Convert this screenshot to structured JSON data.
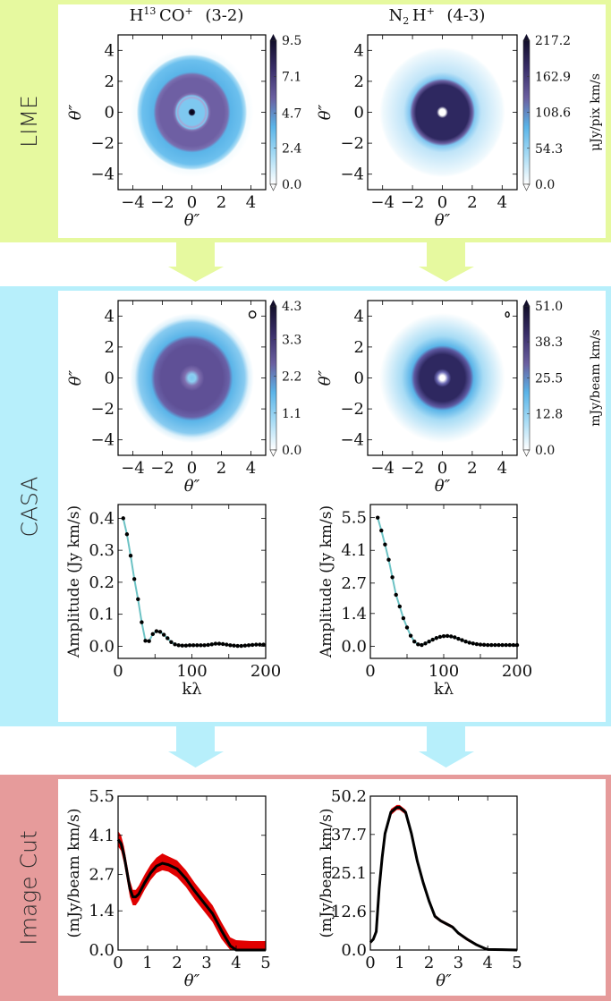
{
  "sections": {
    "lime": "LIME",
    "casa": "CASA",
    "cut": "Image Cut"
  },
  "colors": {
    "lime": "#e6f99f",
    "casa": "#b7effb",
    "cut": "#e69b9b",
    "vis_line": "#6cc2c4",
    "cut_line": "#000000",
    "cut_band": "#e00000",
    "colormap": [
      "#ffffff",
      "#a8dcf5",
      "#5ab4e8",
      "#6a5fa0",
      "#3a2f6a",
      "#120e2a"
    ]
  },
  "titles": [
    {
      "parts": [
        "H",
        "13",
        "CO",
        "+"
      ],
      "transition": "(3-2)"
    },
    {
      "parts": [
        "N",
        "2",
        "H",
        "+"
      ],
      "transition": "(4-3)"
    }
  ],
  "chart_data": [
    {
      "id": "lime-h13co",
      "type": "heatmap",
      "section": "LIME",
      "xlabel": "θ″",
      "ylabel": "θ″",
      "xlim": [
        -5,
        5
      ],
      "ylim": [
        -5,
        5
      ],
      "xticks": [
        "−4",
        "−2",
        "0",
        "2",
        "4"
      ],
      "yticks": [
        "−4",
        "−2",
        "0",
        "2",
        "4"
      ],
      "colorbar": {
        "ticks": [
          "0.0",
          "2.4",
          "4.7",
          "7.1",
          "9.5"
        ],
        "range": [
          0,
          9.5
        ],
        "label": ""
      }
    },
    {
      "id": "lime-n2h",
      "type": "heatmap",
      "section": "LIME",
      "xlabel": "θ″",
      "ylabel": "θ″",
      "xlim": [
        -5,
        5
      ],
      "ylim": [
        -5,
        5
      ],
      "xticks": [
        "−4",
        "−2",
        "0",
        "2",
        "4"
      ],
      "yticks": [
        "−4",
        "−2",
        "0",
        "2",
        "4"
      ],
      "colorbar": {
        "ticks": [
          "0.0",
          "54.3",
          "108.6",
          "162.9",
          "217.2"
        ],
        "range": [
          0,
          217.2
        ],
        "label": "μJy/pix km/s"
      }
    },
    {
      "id": "casa-h13co",
      "type": "heatmap",
      "section": "CASA",
      "xlabel": "θ″",
      "ylabel": "θ″",
      "xlim": [
        -5,
        5
      ],
      "ylim": [
        -5,
        5
      ],
      "xticks": [
        "−4",
        "−2",
        "0",
        "2",
        "4"
      ],
      "yticks": [
        "−4",
        "−2",
        "0",
        "2",
        "4"
      ],
      "beam": true,
      "colorbar": {
        "ticks": [
          "0.0",
          "1.1",
          "2.2",
          "3.3",
          "4.3"
        ],
        "range": [
          0,
          4.3
        ],
        "label": ""
      }
    },
    {
      "id": "casa-n2h",
      "type": "heatmap",
      "section": "CASA",
      "xlabel": "θ″",
      "ylabel": "θ″",
      "xlim": [
        -5,
        5
      ],
      "ylim": [
        -5,
        5
      ],
      "xticks": [
        "−4",
        "−2",
        "0",
        "2",
        "4"
      ],
      "yticks": [
        "−4",
        "−2",
        "0",
        "2",
        "4"
      ],
      "beam": true,
      "colorbar": {
        "ticks": [
          "0.0",
          "12.8",
          "25.5",
          "38.3",
          "51.0"
        ],
        "range": [
          0,
          51.0
        ],
        "label": "mJy/beam km/s"
      }
    },
    {
      "id": "vis-h13co",
      "type": "line",
      "section": "CASA",
      "xlabel": "kλ",
      "ylabel": "Amplitude (Jy km/s)",
      "xlim": [
        0,
        200
      ],
      "ylim": [
        -0.038,
        0.443
      ],
      "xticks": [
        "0",
        "100",
        "200"
      ],
      "yticks": [
        "0.0",
        "0.1",
        "0.2",
        "0.3",
        "0.4"
      ],
      "markers": true,
      "x": [
        7,
        12,
        17,
        22,
        27,
        32,
        37,
        42,
        47,
        52,
        57,
        62,
        67,
        72,
        77,
        82,
        87,
        92,
        97,
        102,
        107,
        112,
        117,
        122,
        127,
        132,
        137,
        142,
        147,
        152,
        157,
        162,
        167,
        172,
        177,
        182,
        187,
        192,
        197
      ],
      "y": [
        0.4,
        0.35,
        0.283,
        0.21,
        0.147,
        0.075,
        0.017,
        0.016,
        0.038,
        0.047,
        0.045,
        0.036,
        0.025,
        0.013,
        0.006,
        0.003,
        0.002,
        0.002,
        0.003,
        0.003,
        0.003,
        0.003,
        0.003,
        0.004,
        0.006,
        0.008,
        0.008,
        0.007,
        0.005,
        0.003,
        0.002,
        0.001,
        0.001,
        0.002,
        0.003,
        0.004,
        0.005,
        0.005,
        0.005
      ]
    },
    {
      "id": "vis-n2h",
      "type": "line",
      "section": "CASA",
      "xlabel": "kλ",
      "ylabel": "Amplitude (Jy km/s)",
      "xlim": [
        0,
        200
      ],
      "ylim": [
        -0.52,
        6.06
      ],
      "xticks": [
        "0",
        "100",
        "200"
      ],
      "yticks": [
        "0.0",
        "1.4",
        "2.7",
        "4.1",
        "5.5"
      ],
      "markers": true,
      "x": [
        10,
        15,
        20,
        25,
        30,
        35,
        40,
        45,
        50,
        55,
        60,
        65,
        70,
        75,
        80,
        85,
        90,
        95,
        100,
        105,
        110,
        115,
        120,
        125,
        130,
        135,
        140,
        145,
        150,
        155,
        160,
        165,
        170,
        175,
        180,
        185,
        190,
        195,
        200
      ],
      "y": [
        5.5,
        4.95,
        4.35,
        3.7,
        2.95,
        2.2,
        1.7,
        1.2,
        0.8,
        0.45,
        0.2,
        0.08,
        0.05,
        0.12,
        0.2,
        0.28,
        0.35,
        0.4,
        0.43,
        0.44,
        0.42,
        0.38,
        0.32,
        0.26,
        0.2,
        0.15,
        0.12,
        0.09,
        0.07,
        0.06,
        0.05,
        0.05,
        0.05,
        0.05,
        0.05,
        0.05,
        0.05,
        0.05,
        0.05
      ]
    },
    {
      "id": "cut-h13co",
      "type": "line",
      "section": "Image Cut",
      "xlabel": "θ″",
      "ylabel": "(mJy/beam km/s)",
      "xlim": [
        0,
        5
      ],
      "ylim": [
        0,
        5.5
      ],
      "xticks": [
        "0",
        "1",
        "2",
        "3",
        "4",
        "5"
      ],
      "yticks": [
        "0.0",
        "1.4",
        "2.7",
        "4.1",
        "5.5"
      ],
      "x": [
        0,
        0.1,
        0.2,
        0.3,
        0.4,
        0.5,
        0.6,
        0.7,
        0.9,
        1.1,
        1.3,
        1.5,
        1.7,
        2.0,
        2.3,
        2.6,
        2.9,
        3.2,
        3.5,
        3.8,
        4.0,
        4.5,
        5.0
      ],
      "y": [
        3.95,
        3.8,
        3.4,
        2.8,
        2.2,
        1.9,
        1.9,
        2.0,
        2.4,
        2.75,
        3.0,
        3.1,
        3.05,
        2.9,
        2.55,
        2.1,
        1.7,
        1.3,
        0.7,
        0.15,
        0.0,
        0.0,
        0.0
      ],
      "y_lower": [
        3.7,
        3.55,
        3.1,
        2.5,
        1.9,
        1.6,
        1.6,
        1.75,
        2.15,
        2.5,
        2.75,
        2.85,
        2.8,
        2.6,
        2.25,
        1.8,
        1.4,
        1.0,
        0.4,
        0.0,
        0.0,
        0.0,
        0.0
      ],
      "y_upper": [
        4.25,
        4.1,
        3.7,
        3.1,
        2.5,
        2.15,
        2.15,
        2.3,
        2.7,
        3.05,
        3.3,
        3.45,
        3.35,
        3.2,
        2.85,
        2.4,
        2.0,
        1.6,
        1.0,
        0.45,
        0.35,
        0.32,
        0.32
      ]
    },
    {
      "id": "cut-n2h",
      "type": "line",
      "section": "Image Cut",
      "xlabel": "θ″",
      "ylabel": "(mJy/beam km/s)",
      "xlim": [
        0,
        5
      ],
      "ylim": [
        0,
        50.2
      ],
      "xticks": [
        "0",
        "1",
        "2",
        "3",
        "4",
        "5"
      ],
      "yticks": [
        "0.0",
        "12.6",
        "25.1",
        "37.7",
        "50.2"
      ],
      "x": [
        0,
        0.1,
        0.2,
        0.3,
        0.4,
        0.5,
        0.7,
        0.9,
        1.0,
        1.2,
        1.4,
        1.6,
        1.8,
        2.0,
        2.2,
        2.4,
        2.6,
        2.8,
        3.0,
        3.3,
        3.6,
        3.9,
        4.0,
        4.5,
        5.0
      ],
      "y": [
        2.5,
        3.5,
        6,
        20,
        30,
        38,
        45,
        46.5,
        46.5,
        45,
        38,
        29,
        22,
        16,
        11,
        9.5,
        8.5,
        7.5,
        5.5,
        3.5,
        1.8,
        0.5,
        0.2,
        0.1,
        0
      ],
      "y_lower": [
        2.0,
        3.0,
        5.3,
        19,
        29,
        37,
        44,
        45.7,
        45.7,
        44.2,
        37.2,
        28.3,
        21.3,
        15.4,
        10.4,
        9.0,
        8.0,
        7.0,
        5.0,
        3.0,
        1.4,
        0.2,
        0,
        0,
        0
      ],
      "y_upper": [
        3.0,
        4.0,
        6.7,
        21,
        31,
        39,
        46,
        47.3,
        47.3,
        45.8,
        38.8,
        29.7,
        22.7,
        16.6,
        11.6,
        10.0,
        9.0,
        8.0,
        6.0,
        4.0,
        2.2,
        0.8,
        0.5,
        0.3,
        0.2
      ]
    }
  ]
}
